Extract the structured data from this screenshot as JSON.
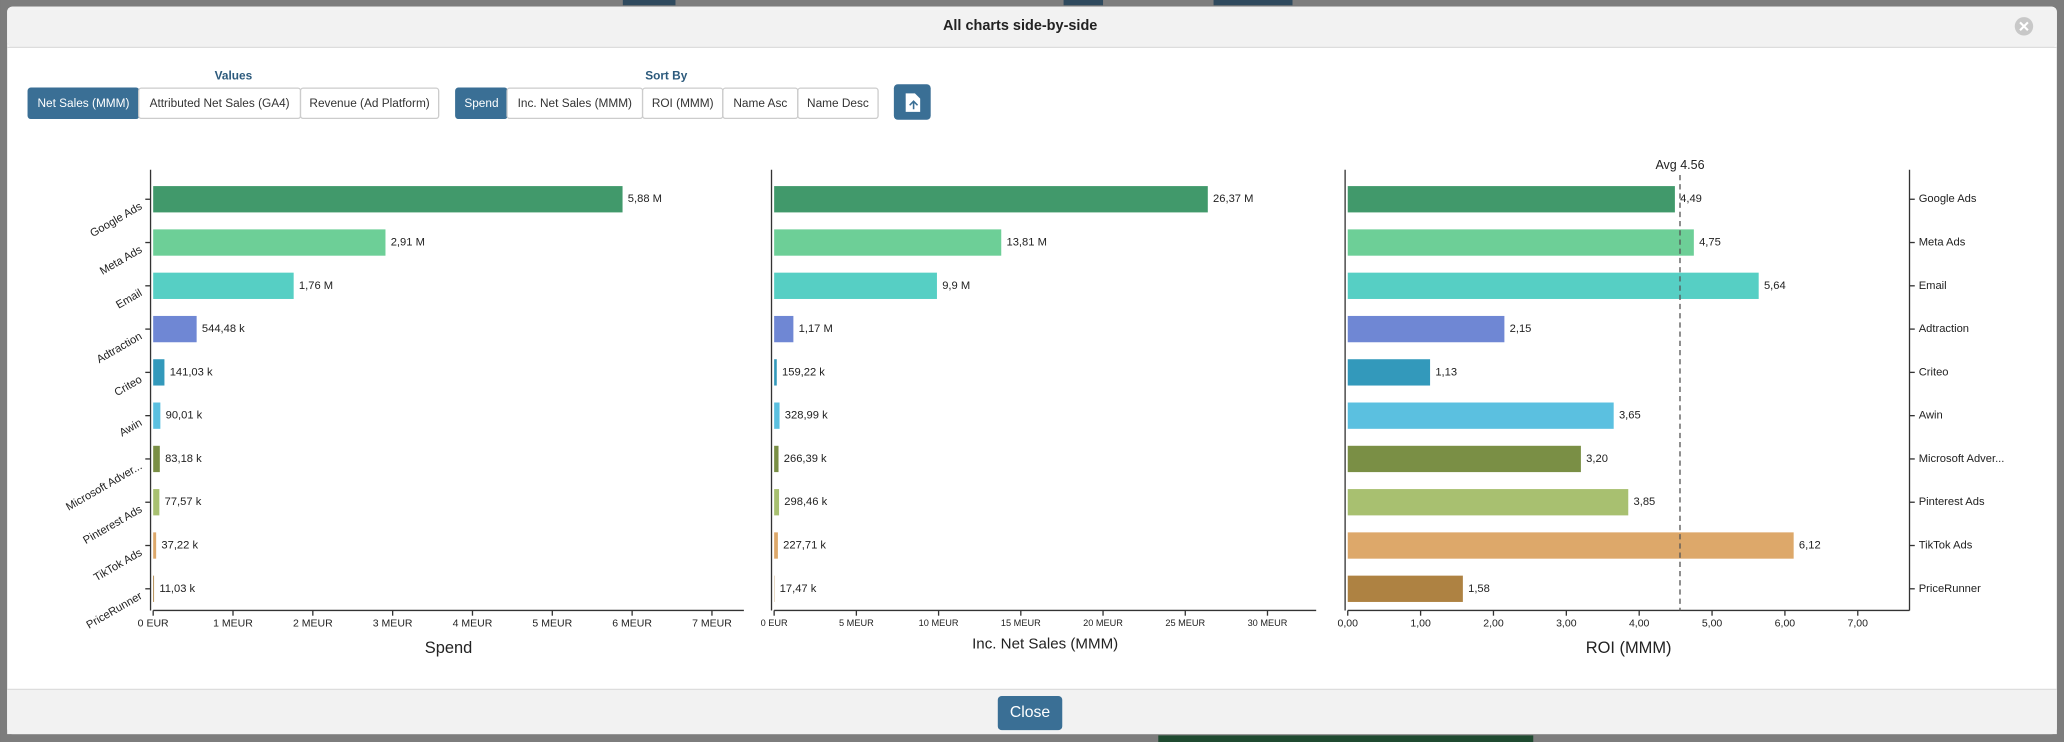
{
  "dialog": {
    "title": "All charts side-by-side",
    "close_label": "Close"
  },
  "controls": {
    "values_label": "Values",
    "values_options": [
      "Net Sales (MMM)",
      "Attributed Net Sales (GA4)",
      "Revenue (Ad Platform)"
    ],
    "values_selected": 0,
    "sort_label": "Sort By",
    "sort_options": [
      "Spend",
      "Inc. Net Sales (MMM)",
      "ROI (MMM)",
      "Name Asc",
      "Name Desc"
    ],
    "sort_selected": 0
  },
  "chart_data": [
    {
      "type": "bar",
      "orientation": "horizontal",
      "xlabel": "Spend",
      "categories": [
        "Google Ads",
        "Meta Ads",
        "Email",
        "Adtraction",
        "Criteo",
        "Awin",
        "Microsoft Adver...",
        "Pinterest Ads",
        "TikTok Ads",
        "PriceRunner"
      ],
      "values": [
        5.88,
        2.91,
        1.76,
        0.54448,
        0.14103,
        0.09001,
        0.08318,
        0.07757,
        0.03722,
        0.01103
      ],
      "value_labels": [
        "5,88 M",
        "2,91 M",
        "1,76 M",
        "544,48 k",
        "141,03 k",
        "90,01 k",
        "83,18 k",
        "77,57 k",
        "37,22 k",
        "11,03 k"
      ],
      "colors": [
        "#41996b",
        "#6dcf97",
        "#56cfc4",
        "#6f87d4",
        "#3399bb",
        "#5bc0e0",
        "#7a8f45",
        "#a8c070",
        "#dda86a",
        "#ae8242"
      ],
      "xlim": [
        0,
        7.4
      ],
      "xticks": [
        {
          "value": 0,
          "label": "0 EUR"
        },
        {
          "value": 1,
          "label": "1 MEUR"
        },
        {
          "value": 2,
          "label": "2 MEUR"
        },
        {
          "value": 3,
          "label": "3 MEUR"
        },
        {
          "value": 4,
          "label": "4 MEUR"
        },
        {
          "value": 5,
          "label": "5 MEUR"
        },
        {
          "value": 6,
          "label": "6 MEUR"
        },
        {
          "value": 7,
          "label": "7 MEUR"
        }
      ]
    },
    {
      "type": "bar",
      "orientation": "horizontal",
      "xlabel": "Inc. Net Sales (MMM)",
      "values": [
        26.37,
        13.81,
        9.9,
        1.17,
        0.15922,
        0.32899,
        0.26639,
        0.29846,
        0.22771,
        0.01747
      ],
      "value_labels": [
        "26,37 M",
        "13,81 M",
        "9,9 M",
        "1,17 M",
        "159,22 k",
        "328,99 k",
        "266,39 k",
        "298,46 k",
        "227,71 k",
        "17,47 k"
      ],
      "colors": [
        "#41996b",
        "#6dcf97",
        "#56cfc4",
        "#6f87d4",
        "#3399bb",
        "#5bc0e0",
        "#7a8f45",
        "#a8c070",
        "#dda86a",
        "#ae8242"
      ],
      "xlim": [
        0,
        32.96
      ],
      "xticks": [
        {
          "value": 0,
          "label": "0 EUR"
        },
        {
          "value": 5,
          "label": "5 MEUR"
        },
        {
          "value": 10,
          "label": "10 MEUR"
        },
        {
          "value": 15,
          "label": "15 MEUR"
        },
        {
          "value": 20,
          "label": "20 MEUR"
        },
        {
          "value": 25,
          "label": "25 MEUR"
        },
        {
          "value": 30,
          "label": "30 MEUR"
        }
      ]
    },
    {
      "type": "bar",
      "orientation": "horizontal",
      "xlabel": "ROI (MMM)",
      "categories": [
        "Google Ads",
        "Meta Ads",
        "Email",
        "Adtraction",
        "Criteo",
        "Awin",
        "Microsoft Adver...",
        "Pinterest Ads",
        "TikTok Ads",
        "PriceRunner"
      ],
      "values": [
        4.49,
        4.75,
        5.64,
        2.15,
        1.13,
        3.65,
        3.2,
        3.85,
        6.12,
        1.58
      ],
      "value_labels": [
        "4,49",
        "4,75",
        "5,64",
        "2,15",
        "1,13",
        "3,65",
        "3,20",
        "3,85",
        "6,12",
        "1,58"
      ],
      "colors": [
        "#41996b",
        "#6dcf97",
        "#56cfc4",
        "#6f87d4",
        "#3399bb",
        "#5bc0e0",
        "#7a8f45",
        "#a8c070",
        "#dda86a",
        "#ae8242"
      ],
      "average": 4.56,
      "average_label": "Avg 4.56",
      "xlim": [
        0,
        7.71
      ],
      "xticks": [
        {
          "value": 0,
          "label": "0,00"
        },
        {
          "value": 1,
          "label": "1,00"
        },
        {
          "value": 2,
          "label": "2,00"
        },
        {
          "value": 3,
          "label": "3,00"
        },
        {
          "value": 4,
          "label": "4,00"
        },
        {
          "value": 5,
          "label": "5,00"
        },
        {
          "value": 6,
          "label": "6,00"
        },
        {
          "value": 7,
          "label": "7,00"
        }
      ]
    }
  ]
}
